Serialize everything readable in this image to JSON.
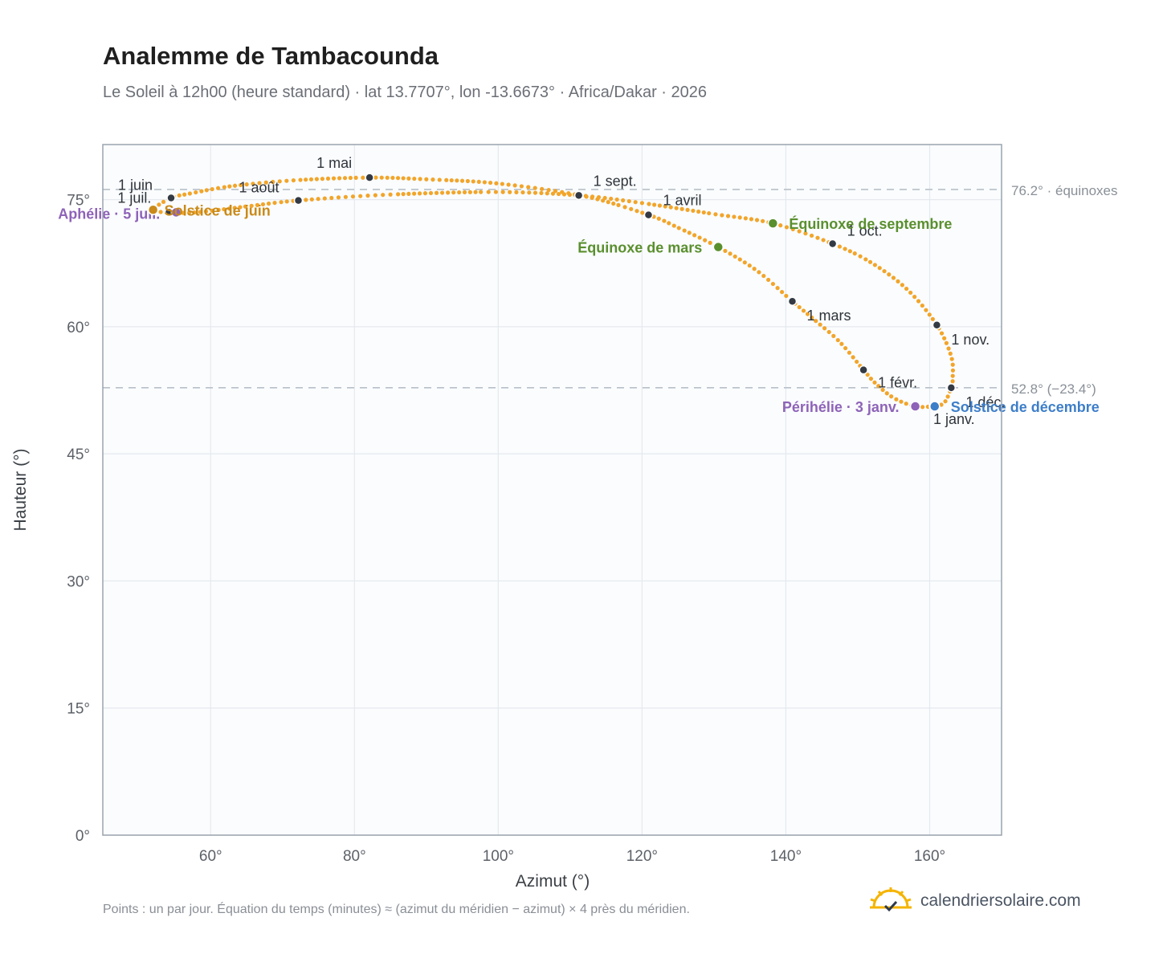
{
  "title": "Analemme de Tambacounda",
  "subtitle": "Le Soleil à 12h00 (heure standard) · lat 13.7707°, lon -13.6673° · Africa/Dakar · 2026",
  "footnote": "Points : un par jour. Équation du temps (minutes) ≈ (azimut du méridien − azimut) × 4 près du méridien.",
  "brand": {
    "name": "calendriersolaire.com",
    "logo_icon": "sun-check-icon",
    "logo_color": "#f5b400"
  },
  "colors": {
    "curve": "#f2a52a",
    "month_marker": "#333a44",
    "equinox": "#5a8f2e",
    "solstice_june": "#c98a1a",
    "solstice_december": "#3d7ec9",
    "perihelion_aphelion": "#8e63b8",
    "reference_line": "#b8c0c9",
    "plot_bg": "#fafcfe",
    "grid": "#e5e9ee",
    "axis_text": "#5c6168"
  },
  "chart_data": {
    "type": "scatter",
    "xlabel": "Azimut (°)",
    "ylabel": "Hauteur (°)",
    "xlim": [
      45,
      170
    ],
    "ylim": [
      0,
      81.5
    ],
    "x_ticks": [
      60,
      80,
      100,
      120,
      140,
      160
    ],
    "x_tick_labels": [
      "60°",
      "80°",
      "100°",
      "120°",
      "140°",
      "160°"
    ],
    "y_ticks": [
      0,
      15,
      30,
      45,
      60,
      75
    ],
    "y_tick_labels": [
      "0°",
      "15°",
      "30°",
      "45°",
      "60°",
      "75°"
    ],
    "grid": true,
    "reference_lines": [
      {
        "y": 76.2,
        "label": "76.2° · équinoxes"
      },
      {
        "y": 52.8,
        "label": "52.8° (−23.4°)"
      }
    ],
    "month_points": [
      {
        "label": "1 janv.",
        "azimuth": 160.5,
        "altitude": 50.6
      },
      {
        "label": "1 févr.",
        "azimuth": 150.8,
        "altitude": 54.9
      },
      {
        "label": "1 mars",
        "azimuth": 140.9,
        "altitude": 63.0
      },
      {
        "label": "1 avril",
        "azimuth": 120.9,
        "altitude": 73.2
      },
      {
        "label": "1 mai",
        "azimuth": 82.1,
        "altitude": 77.6
      },
      {
        "label": "1 juin",
        "azimuth": 54.5,
        "altitude": 75.2
      },
      {
        "label": "1 juil.",
        "azimuth": 54.2,
        "altitude": 73.5
      },
      {
        "label": "1 août",
        "azimuth": 72.2,
        "altitude": 74.9
      },
      {
        "label": "1 sept.",
        "azimuth": 111.2,
        "altitude": 75.5
      },
      {
        "label": "1 oct.",
        "azimuth": 146.5,
        "altitude": 69.8
      },
      {
        "label": "1 nov.",
        "azimuth": 161.0,
        "altitude": 60.2
      },
      {
        "label": "1 déc.",
        "azimuth": 163.0,
        "altitude": 52.8
      }
    ],
    "events": [
      {
        "label": "Périhélie · 3 janv.",
        "azimuth": 158.0,
        "altitude": 50.6,
        "kind": "perihelion_aphelion"
      },
      {
        "label": "Solstice de décembre",
        "azimuth": 160.7,
        "altitude": 50.6,
        "kind": "solstice_december"
      },
      {
        "label": "Équinoxe de mars",
        "azimuth": 130.6,
        "altitude": 69.4,
        "kind": "equinox"
      },
      {
        "label": "Équinoxe de septembre",
        "azimuth": 138.2,
        "altitude": 72.2,
        "kind": "equinox"
      },
      {
        "label": "Aphélie · 5 juil.",
        "azimuth": 55.2,
        "altitude": 73.5,
        "kind": "perihelion_aphelion"
      },
      {
        "label": "Solstice de juin",
        "azimuth": 52.0,
        "altitude": 73.8,
        "kind": "solstice_june"
      }
    ],
    "path_anchors": [
      [
        160.5,
        50.6
      ],
      [
        158.0,
        50.6
      ],
      [
        155.0,
        51.6
      ],
      [
        152.5,
        53.3
      ],
      [
        150.8,
        54.9
      ],
      [
        147.5,
        58.2
      ],
      [
        144.0,
        60.8
      ],
      [
        140.9,
        63.0
      ],
      [
        136.0,
        66.6
      ],
      [
        130.6,
        69.4
      ],
      [
        125.0,
        71.7
      ],
      [
        120.9,
        73.2
      ],
      [
        112.0,
        75.4
      ],
      [
        100.0,
        76.9
      ],
      [
        90.0,
        77.4
      ],
      [
        82.1,
        77.6
      ],
      [
        72.0,
        77.3
      ],
      [
        63.0,
        76.6
      ],
      [
        57.0,
        75.7
      ],
      [
        54.5,
        75.2
      ],
      [
        52.0,
        73.8
      ],
      [
        54.2,
        73.5
      ],
      [
        58.0,
        73.5
      ],
      [
        65.0,
        74.2
      ],
      [
        72.2,
        74.9
      ],
      [
        85.0,
        75.6
      ],
      [
        100.0,
        75.9
      ],
      [
        111.2,
        75.5
      ],
      [
        120.0,
        74.6
      ],
      [
        130.0,
        73.3
      ],
      [
        138.2,
        72.2
      ],
      [
        146.5,
        69.8
      ],
      [
        152.0,
        67.5
      ],
      [
        157.0,
        64.3
      ],
      [
        161.0,
        60.2
      ],
      [
        163.0,
        56.5
      ],
      [
        163.2,
        53.9
      ],
      [
        163.0,
        52.8
      ],
      [
        162.0,
        51.0
      ],
      [
        160.5,
        50.6
      ]
    ]
  }
}
